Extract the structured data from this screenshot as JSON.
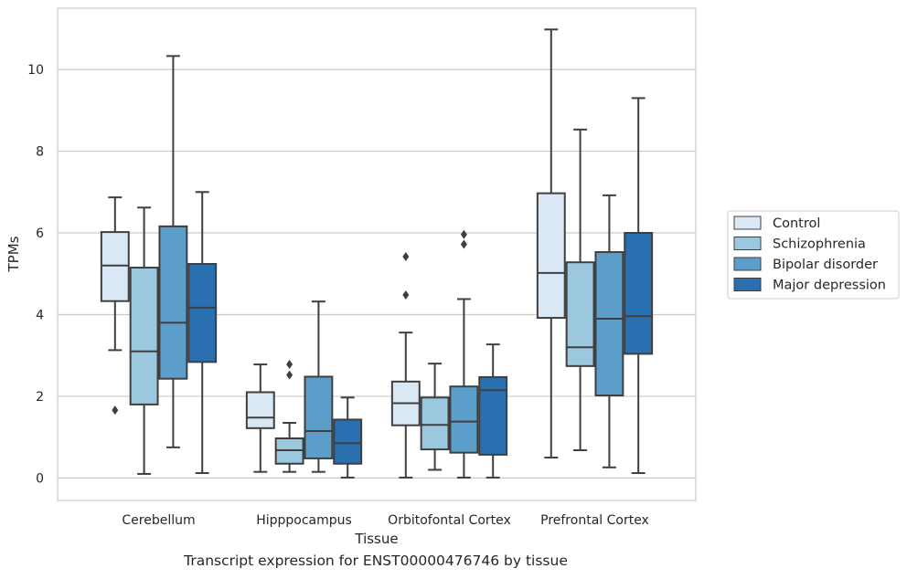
{
  "caption": "Transcript expression for ENST00000476746 by tissue",
  "chart_data": {
    "type": "box",
    "xlabel": "Tissue",
    "ylabel": "TPMs",
    "categories": [
      "Cerebellum",
      "Hipppocampus",
      "Orbitofontal Cortex",
      "Prefrontal Cortex"
    ],
    "yticks": [
      0,
      2,
      4,
      6,
      8,
      10
    ],
    "ylim": [
      -0.55,
      11.5
    ],
    "grid": "horizontal",
    "legend_position": "right",
    "series": [
      {
        "name": "Control",
        "color": "#dae8f5",
        "boxes": [
          {
            "whislo": 3.13,
            "q1": 4.33,
            "med": 5.2,
            "q3": 6.02,
            "whishi": 6.87,
            "fliers": [
              1.66
            ]
          },
          {
            "whislo": 0.15,
            "q1": 1.22,
            "med": 1.48,
            "q3": 2.1,
            "whishi": 2.78,
            "fliers": []
          },
          {
            "whislo": 0.01,
            "q1": 1.29,
            "med": 1.83,
            "q3": 2.36,
            "whishi": 3.56,
            "fliers": [
              4.48,
              5.42
            ]
          },
          {
            "whislo": 0.5,
            "q1": 3.92,
            "med": 5.02,
            "q3": 6.97,
            "whishi": 10.98,
            "fliers": []
          }
        ]
      },
      {
        "name": "Schizophrenia",
        "color": "#9bc7df",
        "boxes": [
          {
            "whislo": 0.1,
            "q1": 1.8,
            "med": 3.1,
            "q3": 5.15,
            "whishi": 6.62,
            "fliers": []
          },
          {
            "whislo": 0.15,
            "q1": 0.35,
            "med": 0.68,
            "q3": 0.97,
            "whishi": 1.35,
            "fliers": [
              2.52,
              2.78
            ]
          },
          {
            "whislo": 0.2,
            "q1": 0.7,
            "med": 1.3,
            "q3": 1.97,
            "whishi": 2.8,
            "fliers": []
          },
          {
            "whislo": 0.68,
            "q1": 2.74,
            "med": 3.2,
            "q3": 5.28,
            "whishi": 8.53,
            "fliers": []
          }
        ]
      },
      {
        "name": "Bipolar disorder",
        "color": "#5b9ec9",
        "boxes": [
          {
            "whislo": 0.75,
            "q1": 2.43,
            "med": 3.8,
            "q3": 6.16,
            "whishi": 10.33,
            "fliers": []
          },
          {
            "whislo": 0.15,
            "q1": 0.48,
            "med": 1.15,
            "q3": 2.48,
            "whishi": 4.32,
            "fliers": []
          },
          {
            "whislo": 0.01,
            "q1": 0.62,
            "med": 1.38,
            "q3": 2.24,
            "whishi": 4.38,
            "fliers": [
              5.72,
              5.96
            ]
          },
          {
            "whislo": 0.26,
            "q1": 2.02,
            "med": 3.9,
            "q3": 5.53,
            "whishi": 6.92,
            "fliers": []
          }
        ]
      },
      {
        "name": "Major depression",
        "color": "#2a6fb0",
        "boxes": [
          {
            "whislo": 0.12,
            "q1": 2.84,
            "med": 4.17,
            "q3": 5.24,
            "whishi": 7.0,
            "fliers": []
          },
          {
            "whislo": 0.01,
            "q1": 0.35,
            "med": 0.85,
            "q3": 1.43,
            "whishi": 1.97,
            "fliers": []
          },
          {
            "whislo": 0.01,
            "q1": 0.57,
            "med": 2.15,
            "q3": 2.47,
            "whishi": 3.27,
            "fliers": []
          },
          {
            "whislo": 0.12,
            "q1": 3.04,
            "med": 3.96,
            "q3": 6.0,
            "whishi": 9.3,
            "fliers": []
          }
        ]
      }
    ]
  }
}
